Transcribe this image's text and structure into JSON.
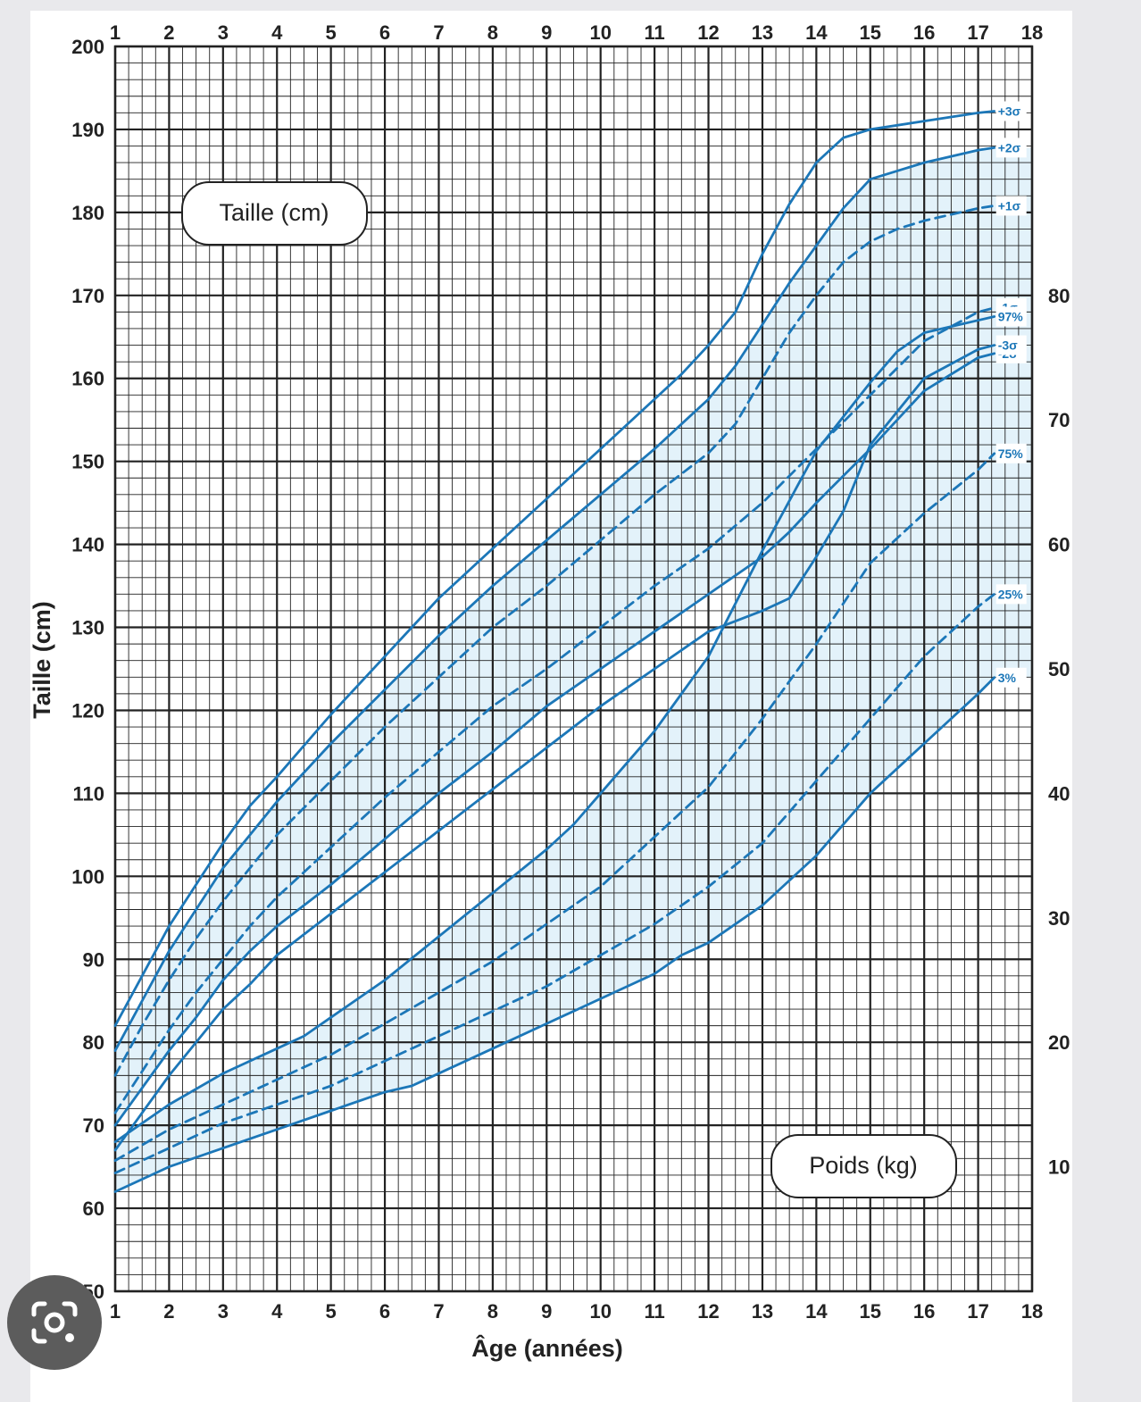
{
  "chart_data": {
    "type": "line",
    "xlabel": "Âge (années)",
    "ylabel": "Taille (cm)",
    "xlim": [
      1,
      18
    ],
    "ylim": [
      50,
      200
    ],
    "y2lim": [
      0,
      100
    ],
    "x_ticks": [
      "1",
      "2",
      "3",
      "4",
      "5",
      "6",
      "7",
      "8",
      "9",
      "10",
      "11",
      "12",
      "13",
      "14",
      "15",
      "16",
      "17",
      "18"
    ],
    "y_ticks": [
      "50",
      "60",
      "70",
      "80",
      "90",
      "100",
      "110",
      "120",
      "130",
      "140",
      "150",
      "160",
      "170",
      "180",
      "190",
      "200"
    ],
    "y2_ticks": [
      "10",
      "20",
      "30",
      "40",
      "50",
      "60",
      "70",
      "80"
    ],
    "grid": true,
    "band_color": "#e3f2fa",
    "line_color": "#1c77b8",
    "height_box_label": "Taille (cm)",
    "weight_box_label": "Poids (kg)",
    "height_series": [
      {
        "name": "+3σ",
        "style": "solid",
        "x": [
          1,
          1.5,
          2,
          2.5,
          3,
          3.5,
          4,
          5,
          6,
          7,
          8,
          9,
          10,
          11,
          11.5,
          12,
          12.5,
          13,
          13.5,
          14,
          14.5,
          15,
          16,
          17,
          17.3
        ],
        "y": [
          82,
          88,
          94,
          99,
          104,
          108.5,
          112,
          119.5,
          126.5,
          133.5,
          139.5,
          145.5,
          151.5,
          157.5,
          160.5,
          164,
          168,
          175,
          181,
          186,
          189,
          190,
          191,
          192,
          192.2
        ]
      },
      {
        "name": "+2σ",
        "style": "solid",
        "x": [
          1,
          1.5,
          2,
          2.5,
          3,
          3.5,
          4,
          5,
          6,
          7,
          8,
          9,
          10,
          11,
          12,
          12.5,
          13,
          13.5,
          14,
          14.5,
          15,
          16,
          17,
          17.3
        ],
        "y": [
          79,
          85,
          91,
          96,
          101,
          105,
          109,
          116,
          122.5,
          129,
          135,
          140.5,
          146,
          151.5,
          157.5,
          161.5,
          166.5,
          171.5,
          176,
          180.5,
          184,
          186,
          187.5,
          187.8
        ]
      },
      {
        "name": "+1σ",
        "style": "dashed",
        "x": [
          1,
          1.5,
          2,
          2.5,
          3,
          3.5,
          4,
          5,
          6,
          7,
          8,
          9,
          10,
          11,
          12,
          12.5,
          13,
          13.5,
          14,
          14.5,
          15,
          15.5,
          16,
          17,
          17.3
        ],
        "y": [
          76,
          82,
          87.5,
          92.5,
          97,
          101,
          105,
          111.5,
          118,
          124,
          130,
          135,
          140.5,
          146,
          151,
          154.5,
          160,
          165.5,
          170,
          174,
          176.5,
          178,
          179,
          180.5,
          180.8
        ]
      },
      {
        "name": "-1σ",
        "style": "dashed",
        "x": [
          1,
          1.5,
          2,
          2.5,
          3,
          3.5,
          4,
          5,
          6,
          7,
          8,
          9,
          10,
          11,
          12,
          13,
          14,
          15,
          16,
          17,
          17.3
        ],
        "y": [
          71.5,
          76.5,
          81.5,
          86,
          90,
          94,
          97.5,
          103.5,
          109.5,
          115,
          120.5,
          125,
          130,
          135,
          139.5,
          145,
          151.5,
          158,
          164.5,
          168,
          168.5
        ]
      },
      {
        "name": "-2σ",
        "style": "solid",
        "x": [
          1,
          1.5,
          2,
          2.5,
          3,
          3.5,
          4,
          5,
          6,
          7,
          8,
          9,
          10,
          11,
          12,
          13,
          13.5,
          14,
          15,
          16,
          17,
          17.3
        ],
        "y": [
          70,
          74.5,
          79,
          83,
          87.5,
          91,
          94,
          99,
          104.5,
          110,
          115,
          120.5,
          125,
          129.5,
          134,
          138.5,
          141.5,
          145,
          151.5,
          158.5,
          162.5,
          163
        ]
      },
      {
        "name": "-3σ",
        "style": "solid",
        "x": [
          1,
          1.5,
          2,
          2.5,
          3,
          3.5,
          4,
          5,
          6,
          7,
          8,
          9,
          10,
          11,
          12,
          13,
          13.5,
          14,
          14.5,
          15,
          16,
          17,
          17.3
        ],
        "y": [
          67,
          71.5,
          76,
          80,
          84,
          87,
          90.5,
          95.5,
          100.5,
          105.5,
          110.5,
          115.5,
          120.5,
          125,
          129.5,
          132,
          133.5,
          138.5,
          144,
          152,
          160,
          163.5,
          164
        ]
      }
    ],
    "weight_series": [
      {
        "name": "97%",
        "style": "solid",
        "x": [
          1,
          2,
          3,
          4,
          4.5,
          5,
          6,
          7,
          8,
          9,
          9.5,
          10,
          11,
          11.5,
          12,
          13,
          14,
          15,
          15.5,
          16,
          17,
          17.3
        ],
        "y": [
          12,
          15,
          17.5,
          19.5,
          20.5,
          22,
          25,
          28.5,
          32,
          35.5,
          37.5,
          40,
          45,
          48,
          51,
          59.5,
          67.5,
          73,
          75.5,
          77,
          78,
          78.3
        ]
      },
      {
        "name": "75%",
        "style": "dashed",
        "x": [
          1,
          2,
          3,
          4,
          5,
          6,
          7,
          8,
          9,
          10,
          11,
          12,
          13,
          14,
          15,
          16,
          17,
          17.3
        ],
        "y": [
          10.5,
          13,
          15,
          17,
          19,
          21.5,
          24,
          26.5,
          29.5,
          32.5,
          36.5,
          40.5,
          46,
          52,
          58.5,
          62.5,
          66,
          67.3
        ]
      },
      {
        "name": "25%",
        "style": "dashed",
        "x": [
          1,
          2,
          3,
          4,
          5,
          6,
          7,
          8,
          9,
          10,
          11,
          12,
          13,
          14,
          15,
          16,
          17,
          17.3
        ],
        "y": [
          9.5,
          11.5,
          13.5,
          15,
          16.5,
          18.5,
          20.5,
          22.5,
          24.5,
          27,
          29.5,
          32.5,
          36,
          41,
          46,
          51,
          55,
          56
        ]
      },
      {
        "name": "3%",
        "style": "solid",
        "x": [
          1,
          2,
          3,
          4,
          5,
          6,
          6.5,
          7,
          8,
          9,
          9.5,
          10,
          11,
          11.5,
          12,
          13,
          13.5,
          14,
          15,
          16,
          17,
          17.3
        ],
        "y": [
          8,
          10,
          11.5,
          13,
          14.5,
          16,
          16.5,
          17.5,
          19.5,
          21.5,
          22.5,
          23.5,
          25.5,
          27,
          28,
          31,
          33,
          35,
          40,
          44,
          48,
          49.3
        ]
      }
    ]
  }
}
